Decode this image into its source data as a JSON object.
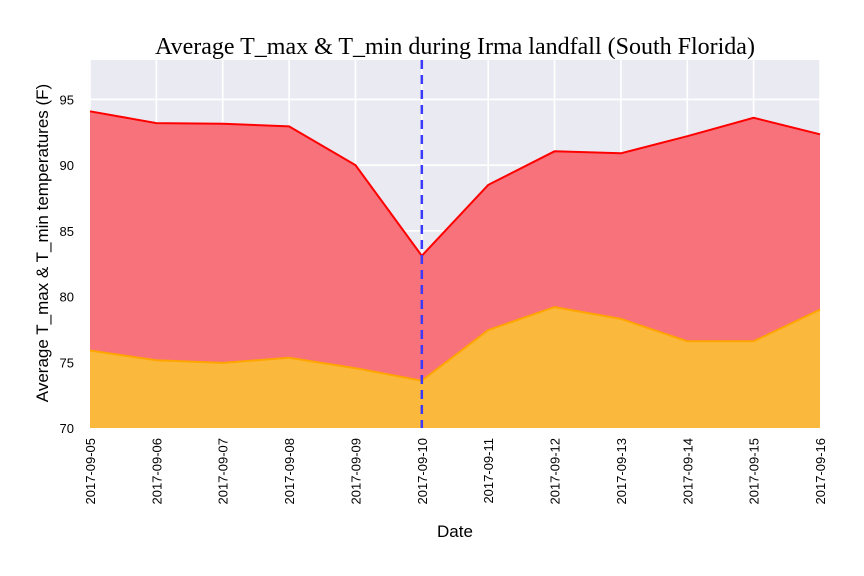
{
  "chart_data": {
    "type": "area",
    "title": "Average T_max & T_min during Irma landfall (South Florida)",
    "xlabel": "Date",
    "ylabel": "Average T_max & T_min temperatures (F)",
    "x": [
      "2017-09-05",
      "2017-09-06",
      "2017-09-07",
      "2017-09-08",
      "2017-09-09",
      "2017-09-10",
      "2017-09-11",
      "2017-09-12",
      "2017-09-13",
      "2017-09-14",
      "2017-09-15",
      "2017-09-16"
    ],
    "ylim": [
      70,
      98
    ],
    "yticks": [
      70,
      75,
      80,
      85,
      90,
      95
    ],
    "grid": true,
    "series": [
      {
        "values": [
          94.1,
          93.2,
          93.15,
          92.95,
          90.0,
          83.1,
          88.5,
          91.05,
          90.9,
          92.2,
          93.6,
          92.35
        ],
        "color": "#ff0000",
        "fill": "#f7727a"
      },
      {
        "values": [
          75.9,
          75.15,
          74.95,
          75.35,
          74.55,
          73.6,
          77.45,
          79.2,
          78.3,
          76.6,
          76.6,
          79.0
        ],
        "color": "#ffa500",
        "fill": "#fab93c"
      }
    ],
    "vline": {
      "x": "2017-09-10",
      "color": "#3b3bff"
    },
    "background": "#eaeaf2"
  }
}
